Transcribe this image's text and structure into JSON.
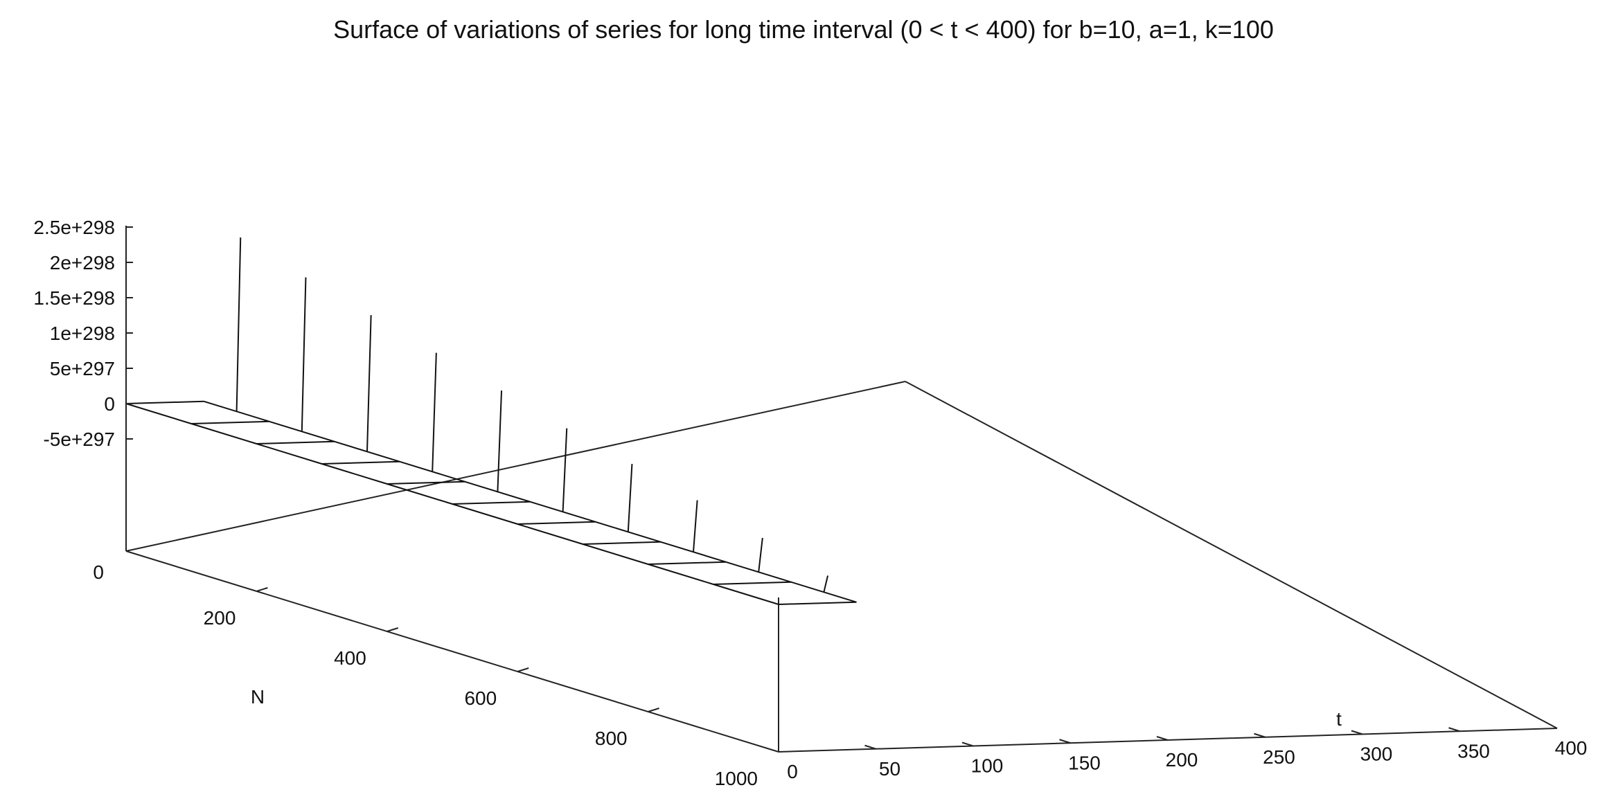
{
  "chart_data": {
    "type": "surface",
    "title": "Surface of variations of series for long time interval (0 < t < 400) for b=10, a=1, k=100",
    "xlabel": "N",
    "ylabel": "t",
    "zlabel": "",
    "x_range": [
      0,
      1000
    ],
    "y_range": [
      0,
      400
    ],
    "z_range": [
      -5e+297,
      2.5e+298
    ],
    "grid": false,
    "x_ticks": [
      "200",
      "400",
      "600",
      "800",
      "1000"
    ],
    "x_origin_label": "0",
    "y_ticks": [
      "0",
      "50",
      "100",
      "150",
      "200",
      "250",
      "300",
      "350",
      "400"
    ],
    "z_ticks": [
      "2.5e+298",
      "2e+298",
      "1.5e+298",
      "1e+298",
      "5e+297",
      "0",
      "-5e+297"
    ],
    "mesh_N": [
      0,
      100,
      200,
      300,
      400,
      500,
      600,
      700,
      800,
      900,
      1000
    ],
    "mesh_t": [
      0,
      40
    ],
    "spike_t": 40,
    "spike_values": [
      2.48e+298,
      2.2e+298,
      1.95e+298,
      1.7e+298,
      1.45e+298,
      1.2e+298,
      9.8e+297,
      7.5e+297,
      5e+297,
      2.5e+297
    ]
  }
}
